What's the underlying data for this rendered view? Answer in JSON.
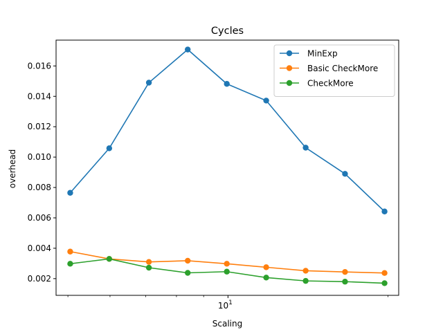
{
  "chart_data": {
    "type": "line",
    "title": "Cycles",
    "xlabel": "Scaling",
    "ylabel": "overhead",
    "x_scale": "log",
    "x_major_tick_labels": [
      {
        "value": 10,
        "base": "10",
        "exp": "1"
      }
    ],
    "ylim": [
      0.0009,
      0.0177
    ],
    "yticks": [
      0.002,
      0.004,
      0.006,
      0.008,
      0.01,
      0.012,
      0.014,
      0.016
    ],
    "ytick_labels": [
      "0.002",
      "0.004",
      "0.006",
      "0.008",
      "0.010",
      "0.012",
      "0.014",
      "0.016"
    ],
    "legend": "top-right",
    "grid": false,
    "x": [
      5.05,
      5.98,
      7.1,
      8.4,
      9.95,
      11.8,
      14.0,
      16.6,
      19.7
    ],
    "series": [
      {
        "name": "MinExp",
        "color": "#1f77b4",
        "values": [
          0.00765,
          0.01058,
          0.0149,
          0.01708,
          0.01482,
          0.01372,
          0.01062,
          0.0089,
          0.00642
        ]
      },
      {
        "name": "Basic CheckMore",
        "color": "#ff7f0e",
        "values": [
          0.00378,
          0.0033,
          0.0031,
          0.00318,
          0.00298,
          0.00275,
          0.00252,
          0.00244,
          0.00237
        ]
      },
      {
        "name": "CheckMore",
        "color": "#2ca02c",
        "values": [
          0.00298,
          0.0033,
          0.00272,
          0.00238,
          0.00246,
          0.00207,
          0.00185,
          0.0018,
          0.0017
        ]
      }
    ]
  }
}
